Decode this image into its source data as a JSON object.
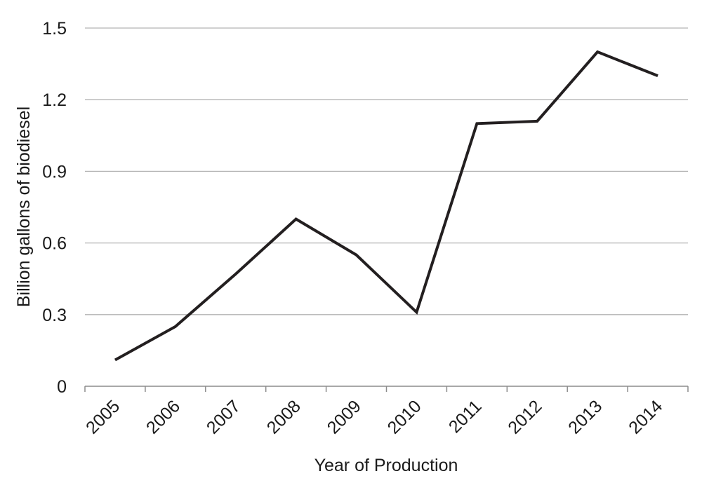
{
  "chart_data": {
    "type": "line",
    "title": "",
    "xlabel": "Year of Production",
    "ylabel": "Billion gallons of biodiesel",
    "categories": [
      "2005",
      "2006",
      "2007",
      "2008",
      "2009",
      "2010",
      "2011",
      "2012",
      "2013",
      "2014"
    ],
    "series": [
      {
        "values": [
          0.11,
          0.25,
          0.47,
          0.7,
          0.55,
          0.31,
          1.1,
          1.11,
          1.4,
          1.3
        ]
      }
    ],
    "ylim": [
      0,
      1.5
    ],
    "yticks": [
      "0",
      "0.3",
      "0.6",
      "0.9",
      "1.2",
      "1.5"
    ],
    "grid": "horizontal",
    "legend": "none",
    "colors": {
      "line": "#231f20",
      "grid": "#b3b3b3",
      "axis": "#8c8c8c",
      "text": "#1a1a1a"
    }
  }
}
